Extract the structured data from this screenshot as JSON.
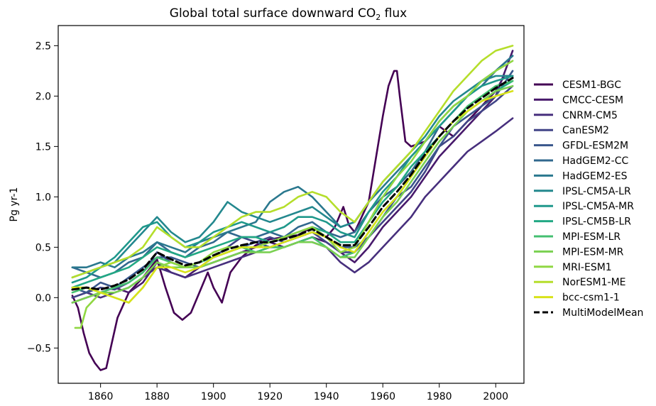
{
  "chart_data": {
    "type": "line",
    "title": "Global total surface downward CO",
    "title_subscript": "2",
    "title_suffix": " flux",
    "xlabel": "",
    "ylabel": "Pg yr-1",
    "xlim": [
      1845,
      2010
    ],
    "ylim": [
      -0.85,
      2.7
    ],
    "xticks": [
      1860,
      1880,
      1900,
      1920,
      1940,
      1960,
      1980,
      2000
    ],
    "yticks": [
      -0.5,
      0.0,
      0.5,
      1.0,
      1.5,
      2.0,
      2.5
    ],
    "ytick_labels": [
      "−0.5",
      "0.0",
      "0.5",
      "1.0",
      "1.5",
      "2.0",
      "2.5"
    ],
    "grid": false,
    "legend_position": "outside-right",
    "series": [
      {
        "name": "CESM1-BGC",
        "color": "#440154",
        "x": [
          1850,
          1852,
          1854,
          1856,
          1858,
          1860,
          1862,
          1864,
          1866,
          1870,
          1875,
          1880,
          1883,
          1886,
          1889,
          1892,
          1895,
          1898,
          1900,
          1903,
          1906,
          1910,
          1915,
          1920,
          1925,
          1930,
          1935,
          1940,
          1943,
          1946,
          1948,
          1950,
          1955,
          1960,
          1962,
          1964,
          1965,
          1966,
          1968,
          1970,
          1975,
          1980,
          1985,
          1990,
          1995,
          2000,
          2003,
          2006
        ],
        "y": [
          0.02,
          -0.1,
          -0.35,
          -0.55,
          -0.65,
          -0.72,
          -0.7,
          -0.45,
          -0.2,
          0.05,
          0.2,
          0.38,
          0.1,
          -0.15,
          -0.22,
          -0.15,
          0.05,
          0.25,
          0.1,
          -0.05,
          0.25,
          0.4,
          0.52,
          0.58,
          0.6,
          0.62,
          0.7,
          0.6,
          0.7,
          0.9,
          0.72,
          0.65,
          0.95,
          1.8,
          2.1,
          2.25,
          2.25,
          2.0,
          1.55,
          1.5,
          1.55,
          1.7,
          1.6,
          1.75,
          1.9,
          2.05,
          2.2,
          2.2
        ]
      },
      {
        "name": "CMCC-CESM",
        "color": "#481a6c",
        "x": [
          1850,
          1855,
          1860,
          1865,
          1870,
          1875,
          1880,
          1885,
          1890,
          1895,
          1900,
          1905,
          1910,
          1915,
          1920,
          1925,
          1930,
          1935,
          1940,
          1945,
          1950,
          1955,
          1960,
          1965,
          1970,
          1975,
          1980,
          1985,
          1990,
          1995,
          2000,
          2006
        ],
        "y": [
          -0.05,
          0.0,
          0.05,
          0.1,
          0.05,
          0.15,
          0.35,
          0.25,
          0.2,
          0.3,
          0.35,
          0.4,
          0.45,
          0.5,
          0.55,
          0.5,
          0.55,
          0.6,
          0.55,
          0.45,
          0.35,
          0.5,
          0.7,
          0.85,
          1.0,
          1.2,
          1.4,
          1.55,
          1.7,
          1.85,
          2.0,
          2.45
        ]
      },
      {
        "name": "CNRM-CM5",
        "color": "#472f7d",
        "x": [
          1850,
          1855,
          1860,
          1865,
          1870,
          1875,
          1880,
          1885,
          1890,
          1895,
          1900,
          1905,
          1910,
          1915,
          1920,
          1925,
          1930,
          1935,
          1940,
          1945,
          1950,
          1955,
          1960,
          1965,
          1970,
          1975,
          1980,
          1985,
          1990,
          1995,
          2000,
          2006
        ],
        "y": [
          0.0,
          0.05,
          0.0,
          0.05,
          0.1,
          0.2,
          0.3,
          0.25,
          0.2,
          0.25,
          0.3,
          0.35,
          0.4,
          0.45,
          0.5,
          0.5,
          0.55,
          0.55,
          0.5,
          0.35,
          0.25,
          0.35,
          0.5,
          0.65,
          0.8,
          1.0,
          1.15,
          1.3,
          1.45,
          1.55,
          1.65,
          1.78
        ]
      },
      {
        "name": "CanESM2",
        "color": "#414487",
        "x": [
          1850,
          1855,
          1860,
          1865,
          1870,
          1875,
          1880,
          1885,
          1890,
          1895,
          1900,
          1905,
          1910,
          1915,
          1920,
          1925,
          1930,
          1935,
          1940,
          1945,
          1950,
          1955,
          1960,
          1965,
          1970,
          1975,
          1980,
          1985,
          1990,
          1995,
          2000,
          2006
        ],
        "y": [
          0.0,
          0.05,
          0.1,
          0.08,
          0.15,
          0.25,
          0.45,
          0.35,
          0.3,
          0.35,
          0.4,
          0.5,
          0.6,
          0.55,
          0.6,
          0.55,
          0.6,
          0.65,
          0.55,
          0.45,
          0.45,
          0.6,
          0.75,
          0.9,
          1.05,
          1.25,
          1.5,
          1.6,
          1.75,
          1.85,
          1.95,
          2.1
        ]
      },
      {
        "name": "GFDL-ESM2M",
        "color": "#39568c",
        "x": [
          1850,
          1855,
          1860,
          1865,
          1870,
          1875,
          1880,
          1885,
          1890,
          1895,
          1900,
          1905,
          1910,
          1915,
          1920,
          1925,
          1930,
          1935,
          1940,
          1945,
          1950,
          1955,
          1960,
          1965,
          1970,
          1975,
          1980,
          1985,
          1990,
          1995,
          2000,
          2006
        ],
        "y": [
          0.1,
          0.05,
          0.15,
          0.1,
          0.2,
          0.3,
          0.4,
          0.4,
          0.35,
          0.3,
          0.4,
          0.45,
          0.5,
          0.55,
          0.5,
          0.55,
          0.6,
          0.65,
          0.6,
          0.5,
          0.5,
          0.6,
          0.8,
          1.0,
          1.1,
          1.3,
          1.5,
          1.7,
          1.8,
          1.9,
          2.0,
          2.25
        ]
      },
      {
        "name": "HadGEM2-CC",
        "color": "#31688e",
        "x": [
          1850,
          1855,
          1860,
          1865,
          1870,
          1875,
          1880,
          1885,
          1890,
          1895,
          1900,
          1905,
          1910,
          1915,
          1920,
          1925,
          1930,
          1935,
          1940,
          1945,
          1950,
          1955,
          1960,
          1965,
          1970,
          1975,
          1980,
          1985,
          1990,
          1995,
          2000,
          2006
        ],
        "y": [
          0.3,
          0.25,
          0.2,
          0.25,
          0.35,
          0.4,
          0.55,
          0.45,
          0.4,
          0.5,
          0.55,
          0.65,
          0.6,
          0.6,
          0.65,
          0.6,
          0.7,
          0.75,
          0.65,
          0.6,
          0.65,
          0.85,
          1.0,
          1.1,
          1.25,
          1.45,
          1.7,
          1.85,
          2.0,
          2.1,
          2.25,
          2.4
        ]
      },
      {
        "name": "HadGEM2-ES",
        "color": "#2a788e",
        "x": [
          1850,
          1855,
          1860,
          1865,
          1870,
          1875,
          1880,
          1885,
          1890,
          1895,
          1900,
          1905,
          1910,
          1915,
          1920,
          1925,
          1930,
          1935,
          1940,
          1945,
          1950,
          1955,
          1960,
          1965,
          1970,
          1975,
          1980,
          1985,
          1990,
          1995,
          2000,
          2006
        ],
        "y": [
          0.3,
          0.3,
          0.35,
          0.3,
          0.4,
          0.45,
          0.55,
          0.5,
          0.45,
          0.55,
          0.6,
          0.65,
          0.7,
          0.75,
          0.95,
          1.05,
          1.1,
          1.0,
          0.85,
          0.7,
          0.75,
          0.95,
          1.1,
          1.25,
          1.4,
          1.55,
          1.75,
          1.9,
          2.0,
          2.15,
          2.25,
          2.4
        ]
      },
      {
        "name": "IPSL-CM5A-LR",
        "color": "#23888e",
        "x": [
          1850,
          1855,
          1860,
          1865,
          1870,
          1875,
          1880,
          1885,
          1890,
          1895,
          1900,
          1905,
          1910,
          1915,
          1920,
          1925,
          1930,
          1935,
          1940,
          1945,
          1950,
          1955,
          1960,
          1965,
          1970,
          1975,
          1980,
          1985,
          1990,
          1995,
          2000,
          2006
        ],
        "y": [
          0.2,
          0.25,
          0.3,
          0.35,
          0.5,
          0.65,
          0.8,
          0.65,
          0.55,
          0.6,
          0.75,
          0.95,
          0.85,
          0.8,
          0.75,
          0.8,
          0.85,
          0.9,
          0.8,
          0.7,
          0.75,
          0.95,
          1.15,
          1.3,
          1.45,
          1.6,
          1.8,
          1.95,
          2.05,
          2.15,
          2.2,
          2.2
        ]
      },
      {
        "name": "IPSL-CM5A-MR",
        "color": "#1f988b",
        "x": [
          1850,
          1855,
          1860,
          1865,
          1870,
          1875,
          1880,
          1885,
          1890,
          1895,
          1900,
          1905,
          1910,
          1915,
          1920,
          1925,
          1930,
          1935,
          1940,
          1945,
          1950,
          1955,
          1960,
          1965,
          1970,
          1975,
          1980,
          1985,
          1990,
          1995,
          2000,
          2006
        ],
        "y": [
          0.15,
          0.2,
          0.3,
          0.4,
          0.55,
          0.7,
          0.75,
          0.6,
          0.5,
          0.55,
          0.65,
          0.7,
          0.75,
          0.7,
          0.65,
          0.7,
          0.8,
          0.8,
          0.75,
          0.65,
          0.6,
          0.85,
          1.05,
          1.2,
          1.4,
          1.55,
          1.7,
          1.85,
          2.0,
          2.1,
          2.15,
          2.2
        ]
      },
      {
        "name": "IPSL-CM5B-LR",
        "color": "#22a884",
        "x": [
          1850,
          1855,
          1860,
          1865,
          1870,
          1875,
          1880,
          1885,
          1890,
          1895,
          1900,
          1905,
          1910,
          1915,
          1920,
          1925,
          1930,
          1935,
          1940,
          1945,
          1950,
          1955,
          1960,
          1965,
          1970,
          1975,
          1980,
          1985,
          1990,
          1995,
          2000,
          2006
        ],
        "y": [
          0.1,
          0.15,
          0.2,
          0.25,
          0.3,
          0.4,
          0.5,
          0.45,
          0.4,
          0.45,
          0.5,
          0.55,
          0.6,
          0.6,
          0.55,
          0.6,
          0.65,
          0.7,
          0.65,
          0.55,
          0.55,
          0.75,
          0.95,
          1.1,
          1.3,
          1.45,
          1.6,
          1.75,
          1.85,
          1.95,
          2.05,
          2.15
        ]
      },
      {
        "name": "MPI-ESM-LR",
        "color": "#44bf70",
        "x": [
          1850,
          1855,
          1860,
          1865,
          1870,
          1875,
          1880,
          1885,
          1890,
          1895,
          1900,
          1905,
          1910,
          1915,
          1920,
          1925,
          1930,
          1935,
          1940,
          1945,
          1950,
          1955,
          1960,
          1965,
          1970,
          1975,
          1980,
          1985,
          1990,
          1995,
          2000,
          2006
        ],
        "y": [
          0.05,
          0.1,
          0.05,
          0.1,
          0.15,
          0.25,
          0.4,
          0.35,
          0.3,
          0.35,
          0.4,
          0.45,
          0.5,
          0.45,
          0.5,
          0.5,
          0.55,
          0.6,
          0.5,
          0.4,
          0.45,
          0.65,
          0.85,
          1.0,
          1.2,
          1.4,
          1.6,
          1.75,
          1.9,
          2.0,
          2.1,
          2.15
        ]
      },
      {
        "name": "MPI-ESM-MR",
        "color": "#7ad151",
        "x": [
          1850,
          1855,
          1860,
          1865,
          1870,
          1875,
          1880,
          1885,
          1890,
          1895,
          1900,
          1905,
          1910,
          1915,
          1920,
          1925,
          1930,
          1935,
          1940,
          1945,
          1950,
          1955,
          1960,
          1965,
          1970,
          1975,
          1980,
          1985,
          1990,
          1995,
          2000,
          2006
        ],
        "y": [
          -0.05,
          0.0,
          0.05,
          0.05,
          0.1,
          0.2,
          0.35,
          0.3,
          0.3,
          0.3,
          0.35,
          0.4,
          0.45,
          0.45,
          0.45,
          0.5,
          0.55,
          0.55,
          0.5,
          0.4,
          0.4,
          0.6,
          0.8,
          0.95,
          1.15,
          1.35,
          1.55,
          1.7,
          1.85,
          1.95,
          2.05,
          2.1
        ]
      },
      {
        "name": "MRI-ESM1",
        "color": "#90d743",
        "x": [
          1851,
          1853,
          1855,
          1860,
          1865,
          1870,
          1875,
          1880,
          1885,
          1890,
          1895,
          1900,
          1905,
          1910,
          1915,
          1920,
          1925,
          1930,
          1935,
          1940,
          1945,
          1950,
          1955,
          1960,
          1965,
          1970,
          1975,
          1980,
          1985,
          1990,
          1995,
          2000,
          2006
        ],
        "y": [
          -0.3,
          -0.3,
          -0.1,
          0.05,
          0.0,
          -0.05,
          0.1,
          0.3,
          0.35,
          0.3,
          0.35,
          0.45,
          0.5,
          0.5,
          0.5,
          0.55,
          0.6,
          0.65,
          0.7,
          0.6,
          0.45,
          0.5,
          0.75,
          1.0,
          1.2,
          1.35,
          1.55,
          1.75,
          1.9,
          2.0,
          2.15,
          2.25,
          2.35
        ]
      },
      {
        "name": "NorESM1-ME",
        "color": "#b5de2b",
        "x": [
          1850,
          1855,
          1860,
          1865,
          1870,
          1875,
          1880,
          1885,
          1890,
          1895,
          1900,
          1905,
          1910,
          1915,
          1920,
          1925,
          1930,
          1935,
          1940,
          1945,
          1950,
          1955,
          1960,
          1965,
          1970,
          1975,
          1980,
          1985,
          1990,
          1995,
          2000,
          2006
        ],
        "y": [
          0.2,
          0.25,
          0.3,
          0.35,
          0.4,
          0.5,
          0.7,
          0.6,
          0.5,
          0.5,
          0.6,
          0.7,
          0.8,
          0.85,
          0.85,
          0.9,
          1.0,
          1.05,
          1.0,
          0.85,
          0.75,
          0.95,
          1.15,
          1.3,
          1.45,
          1.65,
          1.85,
          2.05,
          2.2,
          2.35,
          2.45,
          2.5
        ]
      },
      {
        "name": "bcc-csm1-1",
        "color": "#d8e219",
        "x": [
          1850,
          1855,
          1860,
          1865,
          1870,
          1875,
          1880,
          1885,
          1890,
          1895,
          1900,
          1905,
          1910,
          1915,
          1920,
          1925,
          1930,
          1935,
          1940,
          1945,
          1950,
          1955,
          1960,
          1965,
          1970,
          1975,
          1980,
          1985,
          1990,
          1995,
          2000,
          2006
        ],
        "y": [
          0.1,
          0.1,
          0.05,
          0.0,
          -0.05,
          0.1,
          0.3,
          0.3,
          0.25,
          0.3,
          0.4,
          0.45,
          0.5,
          0.5,
          0.5,
          0.55,
          0.6,
          0.65,
          0.6,
          0.5,
          0.45,
          0.65,
          0.85,
          1.0,
          1.2,
          1.4,
          1.6,
          1.75,
          1.85,
          1.95,
          2.0,
          2.05
        ]
      },
      {
        "name": "MultiModelMean",
        "color": "#000000",
        "dashed": true,
        "x": [
          1850,
          1855,
          1860,
          1865,
          1870,
          1875,
          1880,
          1885,
          1890,
          1895,
          1900,
          1905,
          1910,
          1915,
          1920,
          1925,
          1930,
          1935,
          1940,
          1945,
          1950,
          1955,
          1960,
          1965,
          1970,
          1975,
          1980,
          1985,
          1990,
          1995,
          2000,
          2006
        ],
        "y": [
          0.08,
          0.1,
          0.08,
          0.12,
          0.18,
          0.28,
          0.45,
          0.38,
          0.32,
          0.35,
          0.42,
          0.48,
          0.52,
          0.55,
          0.55,
          0.58,
          0.62,
          0.68,
          0.6,
          0.52,
          0.52,
          0.7,
          0.9,
          1.05,
          1.22,
          1.42,
          1.6,
          1.75,
          1.88,
          1.98,
          2.08,
          2.18
        ]
      }
    ]
  }
}
